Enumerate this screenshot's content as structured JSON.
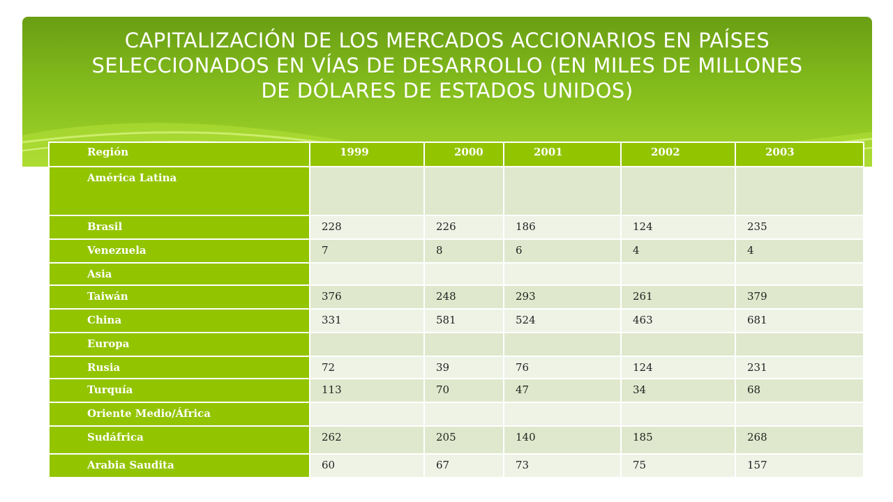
{
  "title": "CAPITALIZACIÓN DE LOS MERCADOS ACCIONARIOS EN PAÍSES SELECCIONADOS EN VÍAS DE DESARROLLO (EN MILES DE MILLONES DE DÓLARES DE ESTADOS UNIDOS)",
  "colors": {
    "header_green": "#82bb1c",
    "table_green": "#93c400",
    "row_light": "#eef3e6",
    "row_mid": "#dfe8cc"
  },
  "table": {
    "headers": [
      "Región",
      "1999",
      "2000",
      "2001",
      "2002",
      "2003"
    ],
    "rows": [
      [
        "América Latina",
        "",
        "",
        "",
        "",
        ""
      ],
      [
        "Brasil",
        "228",
        "226",
        "186",
        "124",
        "235"
      ],
      [
        "Venezuela",
        "7",
        "8",
        "6",
        "4",
        "4"
      ],
      [
        "Asia",
        "",
        "",
        "",
        "",
        ""
      ],
      [
        "Taiwán",
        "376",
        "248",
        "293",
        "261",
        "379"
      ],
      [
        "China",
        "331",
        "581",
        "524",
        "463",
        "681"
      ],
      [
        "Europa",
        "",
        "",
        "",
        "",
        ""
      ],
      [
        "Rusia",
        "72",
        "39",
        "76",
        "124",
        "231"
      ],
      [
        "Turquía",
        "113",
        "70",
        "47",
        "34",
        "68"
      ],
      [
        "Oriente Medio/África",
        "",
        "",
        "",
        "",
        ""
      ],
      [
        "Sudáfrica",
        "262",
        "205",
        "140",
        "185",
        "268"
      ],
      [
        "Arabia Saudita",
        "60",
        "67",
        "73",
        "75",
        "157"
      ]
    ]
  }
}
